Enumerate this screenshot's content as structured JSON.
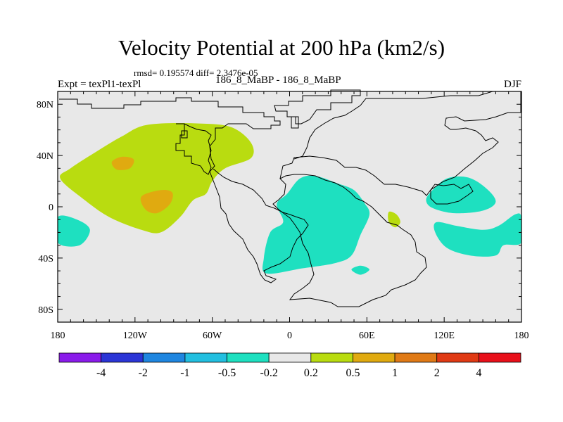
{
  "chart_data": {
    "type": "contour-map",
    "title": "Velocity Potential at 200 hPa (km2/s)",
    "stats": "rmsd= 0.195574  diff= 2.3476e-05",
    "left_label": "Expt = texPl1-texPl",
    "center_label": "186_8_MaBP - 186_8_MaBP",
    "right_label": "DJF",
    "xlim": [
      -180,
      180
    ],
    "ylim": [
      -90,
      90
    ],
    "xticks": [
      {
        "value": -180,
        "label": "180"
      },
      {
        "value": -120,
        "label": "120W"
      },
      {
        "value": -60,
        "label": "60W"
      },
      {
        "value": 0,
        "label": "0"
      },
      {
        "value": 60,
        "label": "60E"
      },
      {
        "value": 120,
        "label": "120E"
      },
      {
        "value": 180,
        "label": "180"
      }
    ],
    "yticks": [
      {
        "value": 80,
        "label": "80N"
      },
      {
        "value": 40,
        "label": "40N"
      },
      {
        "value": 0,
        "label": "0"
      },
      {
        "value": -40,
        "label": "40S"
      },
      {
        "value": -80,
        "label": "80S"
      }
    ],
    "colorbar": {
      "levels": [
        "-4",
        "-2",
        "-1",
        "-0.5",
        "-0.2",
        "0.2",
        "0.5",
        "1",
        "2",
        "4"
      ],
      "colors": [
        "#8a1bea",
        "#2b35d6",
        "#1f86e0",
        "#22bfe0",
        "#1ee0c0",
        "#e8e8e8",
        "#b9dc10",
        "#e0aa10",
        "#e07a16",
        "#e03a14",
        "#e8101a"
      ]
    },
    "regions": [
      {
        "name": "positive-anomaly-west-pacific",
        "level": "0.2 to 0.5",
        "color": "#b9dc10",
        "points": [
          [
            -170,
            30
          ],
          [
            -150,
            43
          ],
          [
            -130,
            55
          ],
          [
            -110,
            64
          ],
          [
            -70,
            65
          ],
          [
            -45,
            62
          ],
          [
            -30,
            50
          ],
          [
            -30,
            38
          ],
          [
            -50,
            30
          ],
          [
            -60,
            20
          ],
          [
            -65,
            10
          ],
          [
            -75,
            5
          ],
          [
            -85,
            -8
          ],
          [
            -100,
            -20
          ],
          [
            -115,
            -18
          ],
          [
            -140,
            -8
          ],
          [
            -160,
            6
          ],
          [
            -178,
            22
          ]
        ]
      },
      {
        "name": "positive-anomaly-core-north",
        "level": "0.5 to 1",
        "color": "#e0aa10",
        "points": [
          [
            -138,
            35
          ],
          [
            -130,
            39
          ],
          [
            -121,
            37
          ],
          [
            -124,
            30
          ],
          [
            -134,
            29
          ]
        ]
      },
      {
        "name": "positive-anomaly-core-south",
        "level": "0.5 to 1",
        "color": "#e0aa10",
        "points": [
          [
            -115,
            8
          ],
          [
            -100,
            13
          ],
          [
            -91,
            11
          ],
          [
            -93,
            2
          ],
          [
            -103,
            -5
          ],
          [
            -112,
            -2
          ]
        ]
      },
      {
        "name": "positive-anomaly-indian-ocean",
        "level": "0.2 to 0.5",
        "color": "#b9dc10",
        "points": [
          [
            77,
            -4
          ],
          [
            83,
            -6
          ],
          [
            86,
            -12
          ],
          [
            82,
            -16
          ],
          [
            77,
            -12
          ]
        ]
      },
      {
        "name": "negative-anomaly-africa",
        "level": "-0.5 to -0.2",
        "color": "#1ee0c0",
        "points": [
          [
            -2,
            10
          ],
          [
            8,
            22
          ],
          [
            20,
            24
          ],
          [
            38,
            18
          ],
          [
            50,
            13
          ],
          [
            58,
            3
          ],
          [
            62,
            -6
          ],
          [
            55,
            -22
          ],
          [
            48,
            -38
          ],
          [
            35,
            -44
          ],
          [
            10,
            -48
          ],
          [
            -18,
            -52
          ],
          [
            -20,
            -40
          ],
          [
            -15,
            -20
          ],
          [
            -5,
            -12
          ],
          [
            -10,
            2
          ]
        ]
      },
      {
        "name": "negative-anomaly-south-atlantic-blob",
        "level": "-0.5 to -0.2",
        "color": "#1ee0c0",
        "points": [
          [
            48,
            -49
          ],
          [
            55,
            -46
          ],
          [
            62,
            -49
          ],
          [
            55,
            -53
          ]
        ]
      },
      {
        "name": "negative-anomaly-west-pacific",
        "level": "-0.5 to -0.2",
        "color": "#1ee0c0",
        "points": [
          [
            110,
            12
          ],
          [
            122,
            22
          ],
          [
            138,
            23
          ],
          [
            152,
            15
          ],
          [
            160,
            4
          ],
          [
            150,
            -3
          ],
          [
            128,
            -5
          ],
          [
            111,
            -1
          ],
          [
            106,
            5
          ]
        ]
      },
      {
        "name": "negative-anomaly-south-pacific",
        "level": "-0.5 to -0.2",
        "color": "#1ee0c0",
        "points": [
          [
            114,
            -12
          ],
          [
            130,
            -15
          ],
          [
            150,
            -18
          ],
          [
            162,
            -15
          ],
          [
            175,
            -6
          ],
          [
            180,
            -8
          ],
          [
            180,
            -28
          ],
          [
            166,
            -30
          ],
          [
            160,
            -38
          ],
          [
            140,
            -38
          ],
          [
            122,
            -32
          ],
          [
            113,
            -20
          ]
        ]
      },
      {
        "name": "negative-anomaly-east-pacific",
        "level": "-0.5 to -0.2",
        "color": "#1ee0c0",
        "points": [
          [
            -180,
            -8
          ],
          [
            -165,
            -10
          ],
          [
            -155,
            -18
          ],
          [
            -163,
            -30
          ],
          [
            -180,
            -28
          ]
        ]
      }
    ]
  }
}
